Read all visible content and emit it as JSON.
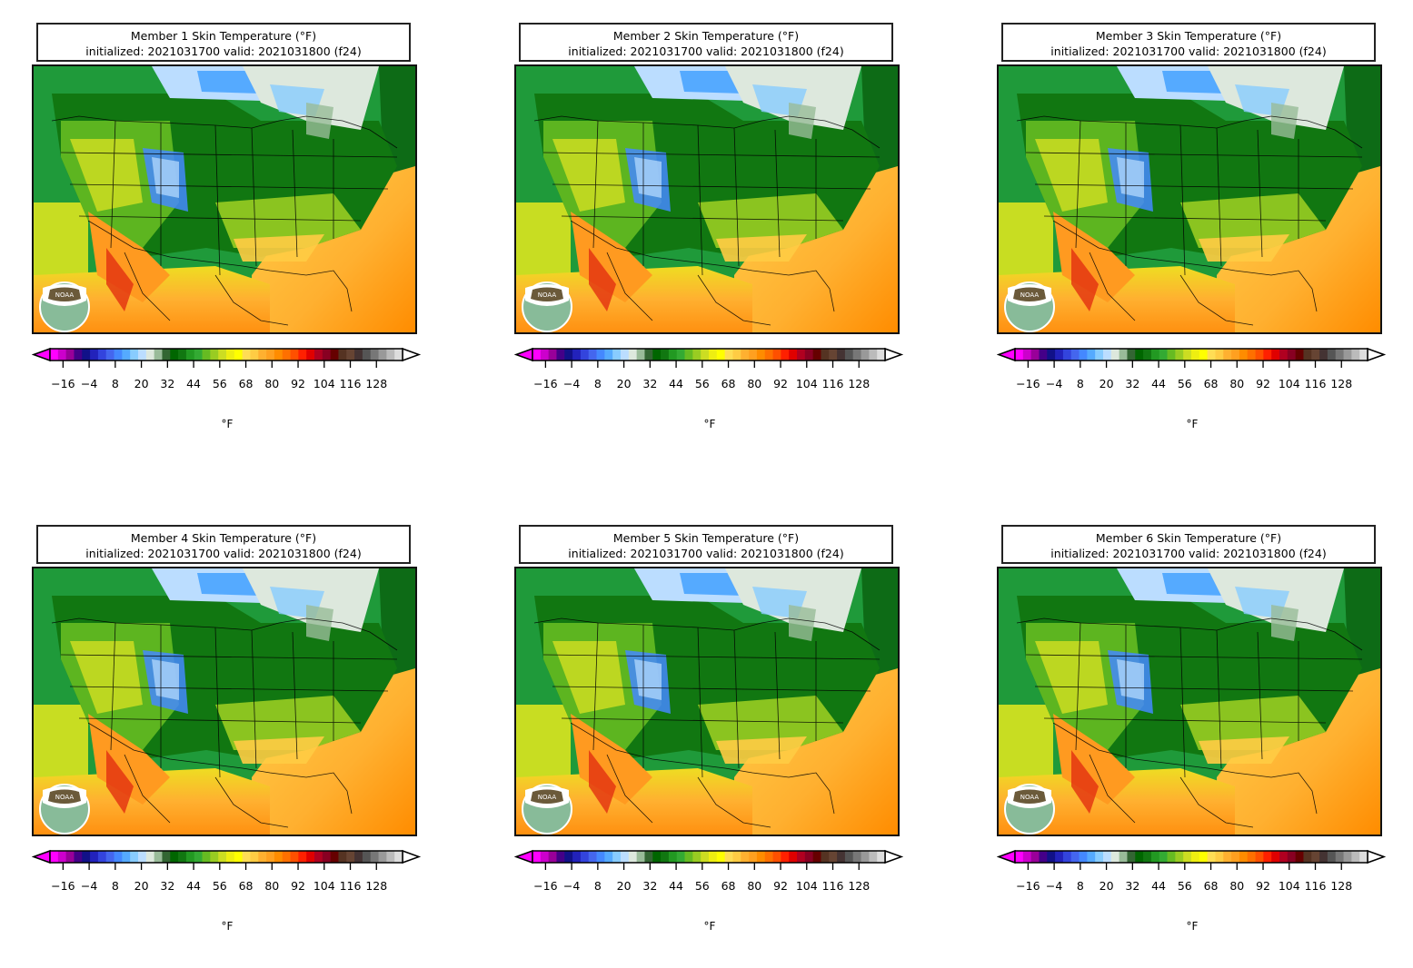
{
  "panels": [
    {
      "line1": "Member 1 Skin Temperature (°F)",
      "line2": "initialized: 2021031700 valid: 2021031800 (f24)"
    },
    {
      "line1": "Member 2 Skin Temperature (°F)",
      "line2": "initialized: 2021031700 valid: 2021031800 (f24)"
    },
    {
      "line1": "Member 3 Skin Temperature (°F)",
      "line2": "initialized: 2021031700 valid: 2021031800 (f24)"
    },
    {
      "line1": "Member 4 Skin Temperature (°F)",
      "line2": "initialized: 2021031700 valid: 2021031800 (f24)"
    },
    {
      "line1": "Member 5 Skin Temperature (°F)",
      "line2": "initialized: 2021031700 valid: 2021031800 (f24)"
    },
    {
      "line1": "Member 6 Skin Temperature (°F)",
      "line2": "initialized: 2021031700 valid: 2021031800 (f24)"
    }
  ],
  "colorbar": {
    "unit": "°F",
    "tick_labels": [
      "−16",
      "−4",
      "8",
      "20",
      "32",
      "44",
      "56",
      "68",
      "80",
      "92",
      "104",
      "116",
      "128"
    ],
    "colors": [
      "#ff00ff",
      "#cc00cc",
      "#990099",
      "#440088",
      "#111188",
      "#2222bb",
      "#3344dd",
      "#4466ee",
      "#4488ff",
      "#55aaff",
      "#88ccff",
      "#bbddff",
      "#dde8dd",
      "#99bb99",
      "#336633",
      "#006600",
      "#117711",
      "#229922",
      "#33aa33",
      "#66bb22",
      "#99cc22",
      "#ccdd22",
      "#eeee11",
      "#ffff00",
      "#ffdd55",
      "#ffcc44",
      "#ffb030",
      "#ffa020",
      "#ff8c00",
      "#ff7000",
      "#ff5000",
      "#ff2000",
      "#e00000",
      "#b00020",
      "#880022",
      "#660000",
      "#553322",
      "#664433",
      "#443333",
      "#555555",
      "#777777",
      "#999999",
      "#bbbbbb",
      "#dddddd"
    ]
  },
  "logo_text": "NOAA"
}
